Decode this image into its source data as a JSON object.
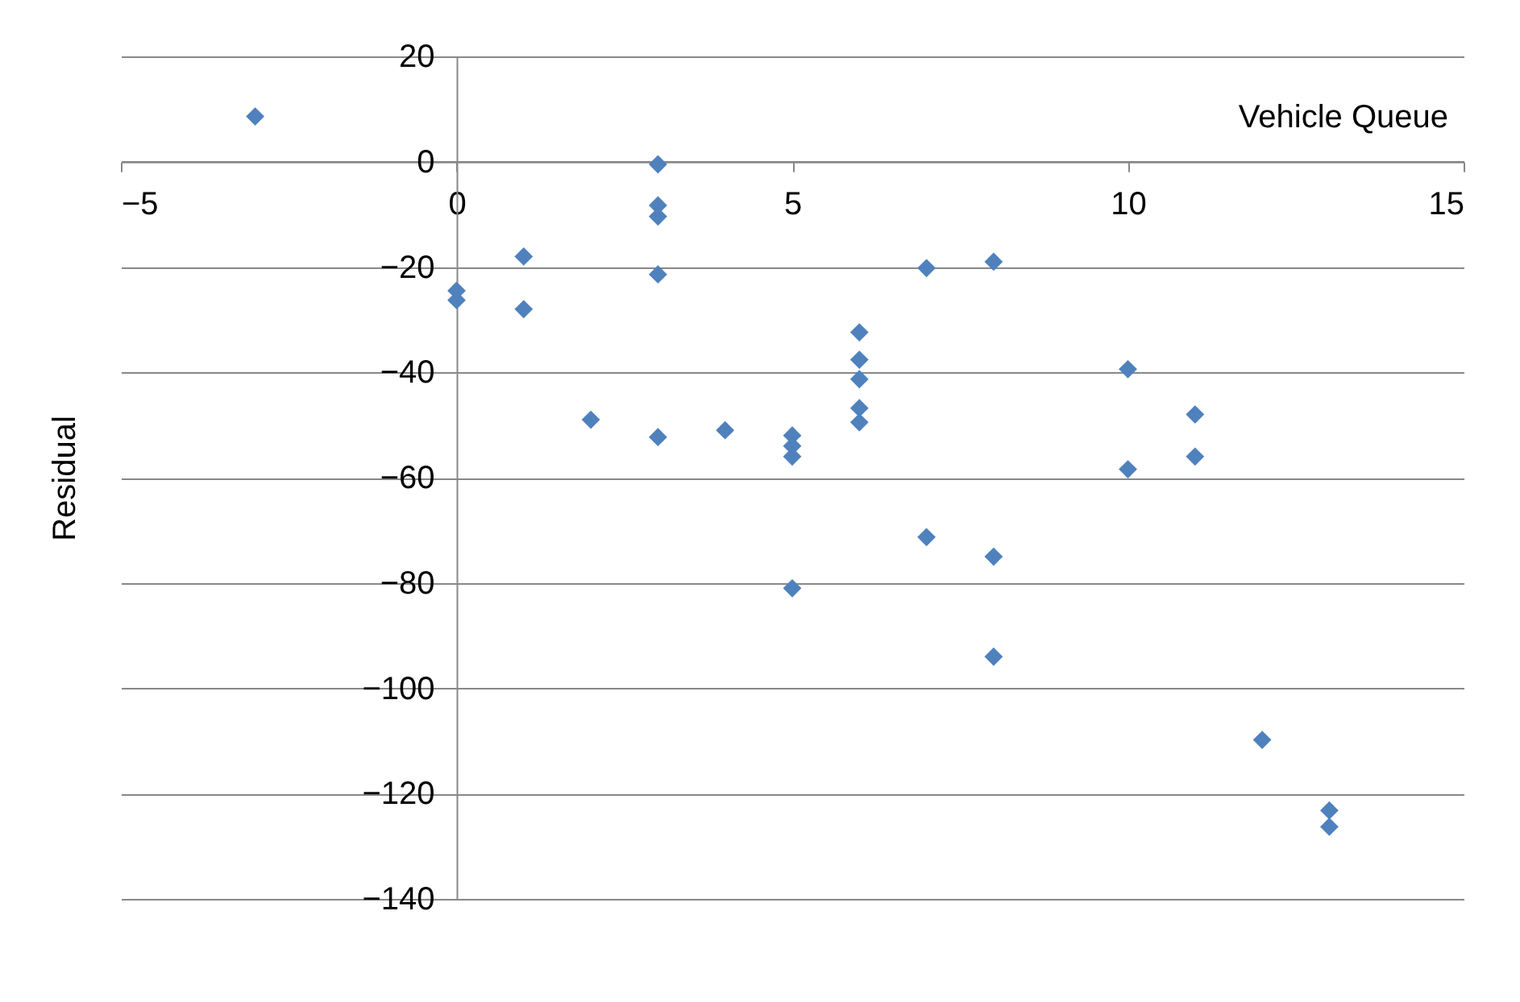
{
  "chart_data": {
    "type": "scatter",
    "xlabel": "Vehicle Queue",
    "ylabel": "Residual",
    "xlim": [
      -5,
      15
    ],
    "xticks": [
      -5,
      0,
      5,
      10,
      15
    ],
    "ylim": [
      -140,
      20
    ],
    "yticks": [
      20,
      0,
      -20,
      -40,
      -60,
      -80,
      -100,
      -120,
      -140
    ],
    "grid": "y",
    "marker": "diamond",
    "series": [
      {
        "color": "#4f81bd",
        "x": [
          -3,
          0,
          0,
          1,
          1,
          2,
          3,
          3,
          3,
          3,
          3,
          4,
          5,
          5,
          5,
          5,
          6,
          6,
          6,
          6,
          6,
          7,
          7,
          8,
          8,
          8,
          10,
          10,
          11,
          11,
          12,
          13,
          13
        ],
        "values": [
          8.6,
          -24.5,
          -26.3,
          -18,
          -28,
          -49,
          -0.5,
          -8.3,
          -10.4,
          -21.4,
          -52.3,
          -51,
          -52,
          -54,
          -56,
          -81,
          -32.4,
          -37.6,
          -41.3,
          -46.8,
          -49.5,
          -20.2,
          -71.3,
          -19,
          -75,
          -94,
          -39.4,
          -58.4,
          -48,
          -56,
          -109.8,
          -123.2,
          -126.3
        ]
      }
    ]
  }
}
